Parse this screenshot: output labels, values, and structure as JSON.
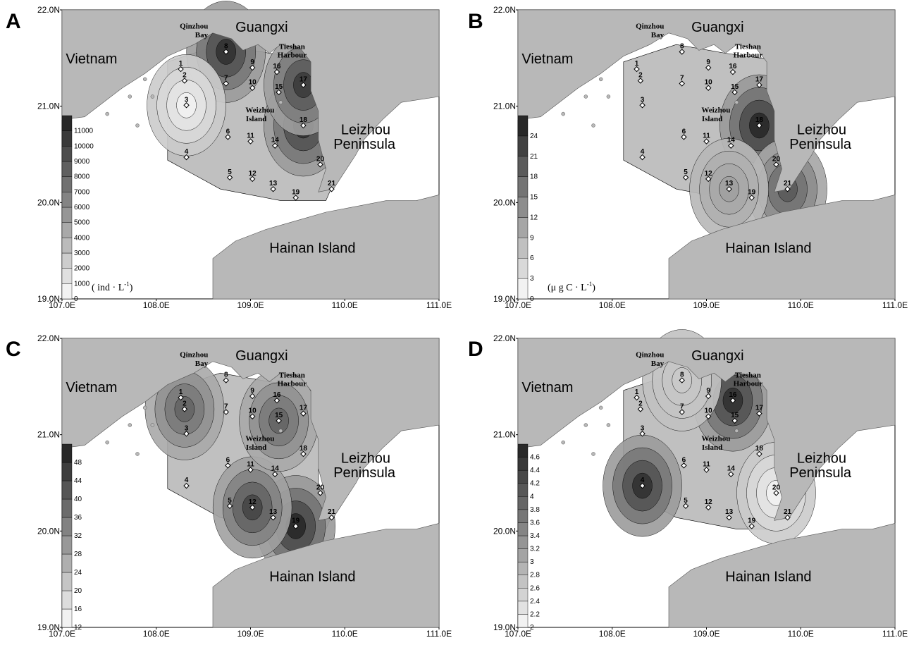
{
  "panels": [
    {
      "letter": "A",
      "unit": "( ind · L",
      "unit_sup": "-1",
      "unit_close": ")",
      "legend": [
        "0",
        "1000",
        "2000",
        "3000",
        "4000",
        "5000",
        "6000",
        "7000",
        "8000",
        "9000",
        "10000",
        "11000"
      ],
      "hotspots": [
        {
          "st": "8",
          "level": 0.95
        },
        {
          "st": "18",
          "level": 0.95
        },
        {
          "st": "17",
          "level": 0.9
        },
        {
          "st": "3",
          "level": 0.0
        }
      ],
      "x_ticks": [
        "107.0E",
        "108.0E",
        "109.0E",
        "110.0E",
        "111.0E"
      ]
    },
    {
      "letter": "B",
      "unit": "(μ g C · L",
      "unit_sup": "-1",
      "unit_close": ")",
      "legend": [
        "0",
        "3",
        "6",
        "9",
        "12",
        "15",
        "18",
        "21",
        "24"
      ],
      "hotspots": [
        {
          "st": "18",
          "level": 1.0
        },
        {
          "st": "21",
          "level": 0.75
        },
        {
          "st": "13",
          "level": 0.4
        }
      ],
      "x_ticks": [
        "107.0E",
        "108.0E",
        "109.0E",
        "110.0E",
        "111.0E"
      ]
    },
    {
      "letter": "C",
      "unit": "",
      "unit_sup": "",
      "unit_close": "",
      "legend": [
        "12",
        "16",
        "20",
        "24",
        "28",
        "32",
        "36",
        "40",
        "44",
        "48"
      ],
      "hotspots": [
        {
          "st": "19",
          "level": 1.0
        },
        {
          "st": "12",
          "level": 0.85
        },
        {
          "st": "2",
          "level": 0.7
        },
        {
          "st": "15",
          "level": 0.7
        }
      ],
      "x_ticks": [
        "107.0E",
        "108.0E",
        "109.0E",
        "110.0E",
        "111.0E"
      ]
    },
    {
      "letter": "D",
      "unit": "",
      "unit_sup": "",
      "unit_close": "",
      "legend": [
        "2",
        "2.2",
        "2.4",
        "2.6",
        "2.8",
        "3",
        "3.2",
        "3.4",
        "3.6",
        "3.8",
        "4",
        "4.2",
        "4.4",
        "4.6"
      ],
      "hotspots": [
        {
          "st": "4",
          "level": 0.95
        },
        {
          "st": "16",
          "level": 0.95
        },
        {
          "st": "20",
          "level": 0.0
        },
        {
          "st": "8",
          "level": 0.2
        }
      ],
      "x_ticks": [
        "107.0E",
        "108.0E",
        "109.0E",
        "110.0E",
        "111.0E"
      ]
    }
  ],
  "y_ticks": [
    "22.0N",
    "21.0N",
    "20.0N",
    "19.0N"
  ],
  "places": {
    "vietnam": "Vietnam",
    "guangxi": "Guangxi",
    "qinzhou": [
      "Qinzhou",
      "Bay"
    ],
    "tieshan": [
      "Tieshan",
      "Harbour"
    ],
    "weizhou": [
      "Weizhou",
      "Island"
    ],
    "leizhou": [
      "Leizhou",
      "Peninsula"
    ],
    "hainan": "Hainan Island"
  },
  "stations": [
    "1",
    "2",
    "3",
    "4",
    "5",
    "6",
    "7",
    "8",
    "9",
    "10",
    "11",
    "12",
    "13",
    "14",
    "15",
    "16",
    "17",
    "18",
    "19",
    "20",
    "21"
  ],
  "colors": {
    "land": "#b8b8b8",
    "sea": "#ffffff",
    "scale_light": "#f2f2f2",
    "scale_dark": "#262626"
  }
}
